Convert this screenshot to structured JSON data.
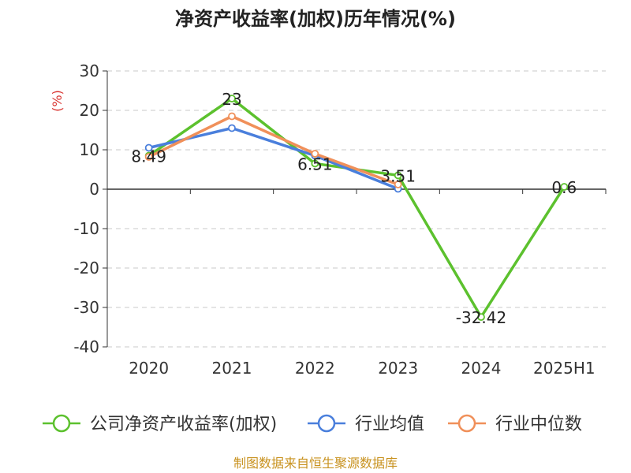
{
  "chart_data": {
    "type": "line",
    "title": "净资产收益率(加权)历年情况(%)",
    "ylabel": "(%)",
    "categories": [
      "2020",
      "2021",
      "2022",
      "2023",
      "2024",
      "2025H1"
    ],
    "yticks": [
      "30",
      "20",
      "10",
      "0",
      "-10",
      "-20",
      "-30",
      "-40"
    ],
    "ylim": [
      -40,
      30
    ],
    "grid": true,
    "legend_position": "bottom",
    "series": [
      {
        "name": "公司净资产收益率(加权)",
        "color": "#5cc12e",
        "values": [
          8.49,
          23,
          6.51,
          3.51,
          -32.42,
          0.6
        ]
      },
      {
        "name": "行业均值",
        "color": "#4a7fdc",
        "values": [
          10.5,
          15.5,
          8.5,
          0.1,
          null,
          null
        ]
      },
      {
        "name": "行业中位数",
        "color": "#f0905a",
        "values": [
          8.2,
          18.5,
          9.0,
          1.2,
          null,
          null
        ]
      }
    ],
    "data_labels": [
      "8.49",
      "23",
      "6.51",
      "3.51",
      "-32.42",
      "0.6"
    ]
  },
  "source": "制图数据来自恒生聚源数据库"
}
